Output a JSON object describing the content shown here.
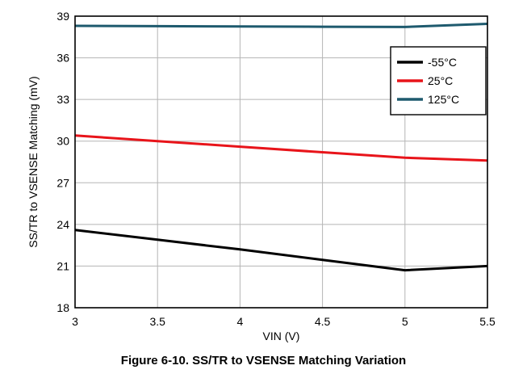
{
  "figure": {
    "caption": "Figure 6-10. SS/TR to VSENSE Matching Variation"
  },
  "chart_data": {
    "type": "line",
    "xlabel": "VIN (V)",
    "ylabel": "SS/TR to VSENSE Matching (mV)",
    "xlim": [
      3,
      5.5
    ],
    "ylim": [
      18,
      39
    ],
    "xticks": [
      3,
      3.5,
      4,
      4.5,
      5,
      5.5
    ],
    "yticks": [
      18,
      21,
      24,
      27,
      30,
      33,
      36,
      39
    ],
    "xtick_labels": [
      "3",
      "3.5",
      "4",
      "4.5",
      "5",
      "5.5"
    ],
    "ytick_labels": [
      "18",
      "21",
      "24",
      "27",
      "30",
      "33",
      "36",
      "39"
    ],
    "grid": true,
    "legend_position": "top-right",
    "series": [
      {
        "name": "-55°C",
        "color": "#000000",
        "x": [
          3,
          3.5,
          4,
          4.5,
          5,
          5.5
        ],
        "y": [
          23.6,
          22.9,
          22.2,
          21.45,
          20.7,
          21.0
        ]
      },
      {
        "name": "25°C",
        "color": "#e8141a",
        "x": [
          3,
          3.5,
          4,
          4.5,
          5,
          5.5
        ],
        "y": [
          30.4,
          30.0,
          29.6,
          29.2,
          28.8,
          28.6
        ]
      },
      {
        "name": "125°C",
        "color": "#1e5a6e",
        "x": [
          3,
          3.5,
          4,
          4.5,
          5,
          5.5
        ],
        "y": [
          38.3,
          38.28,
          38.26,
          38.24,
          38.22,
          38.45
        ]
      }
    ]
  }
}
